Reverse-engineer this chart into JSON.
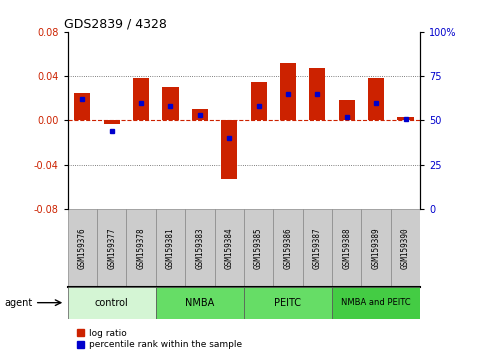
{
  "title": "GDS2839 / 4328",
  "samples": [
    "GSM159376",
    "GSM159377",
    "GSM159378",
    "GSM159381",
    "GSM159383",
    "GSM159384",
    "GSM159385",
    "GSM159386",
    "GSM159387",
    "GSM159388",
    "GSM159389",
    "GSM159390"
  ],
  "log_ratio": [
    0.025,
    -0.003,
    0.038,
    0.03,
    0.01,
    -0.053,
    0.035,
    0.052,
    0.047,
    0.018,
    0.038,
    0.003
  ],
  "percentile_rank": [
    62,
    44,
    60,
    58,
    53,
    40,
    58,
    65,
    65,
    52,
    60,
    51
  ],
  "groups": [
    {
      "label": "control",
      "start": 0,
      "end": 3,
      "color": "#d4f5d4"
    },
    {
      "label": "NMBA",
      "start": 3,
      "end": 6,
      "color": "#66dd66"
    },
    {
      "label": "PEITC",
      "start": 6,
      "end": 9,
      "color": "#66dd66"
    },
    {
      "label": "NMBA and PEITC",
      "start": 9,
      "end": 12,
      "color": "#44cc44"
    }
  ],
  "ylim_left": [
    -0.08,
    0.08
  ],
  "ylim_right": [
    0,
    100
  ],
  "yticks_left": [
    -0.08,
    -0.04,
    0,
    0.04,
    0.08
  ],
  "yticks_right": [
    0,
    25,
    50,
    75,
    100
  ],
  "bar_color_red": "#cc2200",
  "bar_color_blue": "#0000cc",
  "zero_line_color": "#cc2200",
  "dotted_line_color": "#555555",
  "bg_color": "#ffffff",
  "plot_bg": "#ffffff",
  "legend_red": "log ratio",
  "legend_blue": "percentile rank within the sample",
  "bar_width": 0.55,
  "agent_label": "agent"
}
